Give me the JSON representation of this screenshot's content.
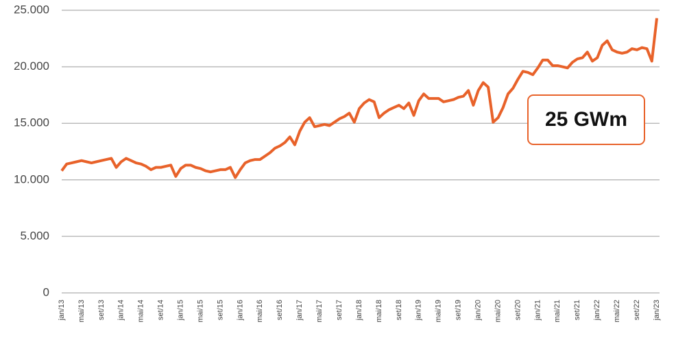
{
  "chart_data": {
    "type": "line",
    "annotation": "25 GWm",
    "categories": [
      "jan/13",
      null,
      null,
      null,
      "mai/13",
      null,
      null,
      null,
      "set/13",
      null,
      null,
      null,
      "jan/14",
      null,
      null,
      null,
      "mai/14",
      null,
      null,
      null,
      "set/14",
      null,
      null,
      null,
      "jan/15",
      null,
      null,
      null,
      "mai/15",
      null,
      null,
      null,
      "set/15",
      null,
      null,
      null,
      "jan/16",
      null,
      null,
      null,
      "mai/16",
      null,
      null,
      null,
      "set/16",
      null,
      null,
      null,
      "jan/17",
      null,
      null,
      null,
      "mai/17",
      null,
      null,
      null,
      "set/17",
      null,
      null,
      null,
      "jan/18",
      null,
      null,
      null,
      "mai/18",
      null,
      null,
      null,
      "set/18",
      null,
      null,
      null,
      "jan/19",
      null,
      null,
      null,
      "mai/19",
      null,
      null,
      null,
      "set/19",
      null,
      null,
      null,
      "jan/20",
      null,
      null,
      null,
      "mai/20",
      null,
      null,
      null,
      "set/20",
      null,
      null,
      null,
      "jan/21",
      null,
      null,
      null,
      "mai/21",
      null,
      null,
      null,
      "set/21",
      null,
      null,
      null,
      "jan/22",
      null,
      null,
      null,
      "mai/22",
      null,
      null,
      null,
      "set/22",
      null,
      null,
      null,
      "jan/23"
    ],
    "series": [
      {
        "color": "#e8622a",
        "values": [
          10800,
          11400,
          11500,
          11600,
          11700,
          11600,
          11500,
          11600,
          11700,
          11800,
          11900,
          11100,
          11600,
          11900,
          11700,
          11500,
          11400,
          11200,
          10900,
          11100,
          11100,
          11200,
          11300,
          10300,
          11000,
          11300,
          11300,
          11100,
          11000,
          10800,
          10700,
          10800,
          10900,
          10900,
          11100,
          10200,
          10900,
          11500,
          11700,
          11800,
          11800,
          12100,
          12400,
          12800,
          13000,
          13300,
          13800,
          13100,
          14300,
          15100,
          15500,
          14700,
          14800,
          14900,
          14800,
          15100,
          15400,
          15600,
          15900,
          15100,
          16300,
          16800,
          17100,
          16900,
          15500,
          15900,
          16200,
          16400,
          16600,
          16300,
          16800,
          15700,
          17000,
          17600,
          17200,
          17200,
          17200,
          16900,
          17000,
          17100,
          17300,
          17400,
          17900,
          16600,
          17900,
          18600,
          18200,
          15100,
          15500,
          16400,
          17600,
          18100,
          18900,
          19600,
          19500,
          19300,
          19900,
          20600,
          20600,
          20100,
          20100,
          20000,
          19900,
          20400,
          20700,
          20800,
          21300,
          20500,
          20800,
          21900,
          22300,
          21500,
          21300,
          21200,
          21300,
          21600,
          21500,
          21700,
          21600,
          20500,
          24300
        ]
      }
    ],
    "ylim": [
      0,
      25000
    ],
    "yticks": [
      0,
      {
        "value": 5000,
        "label": "5.000"
      },
      {
        "value": 10000,
        "label": "10.000"
      },
      {
        "value": 15000,
        "label": "15.000"
      },
      {
        "value": 20000,
        "label": "20.000"
      },
      {
        "value": 25000,
        "label": "25.000"
      }
    ],
    "grid": true
  }
}
